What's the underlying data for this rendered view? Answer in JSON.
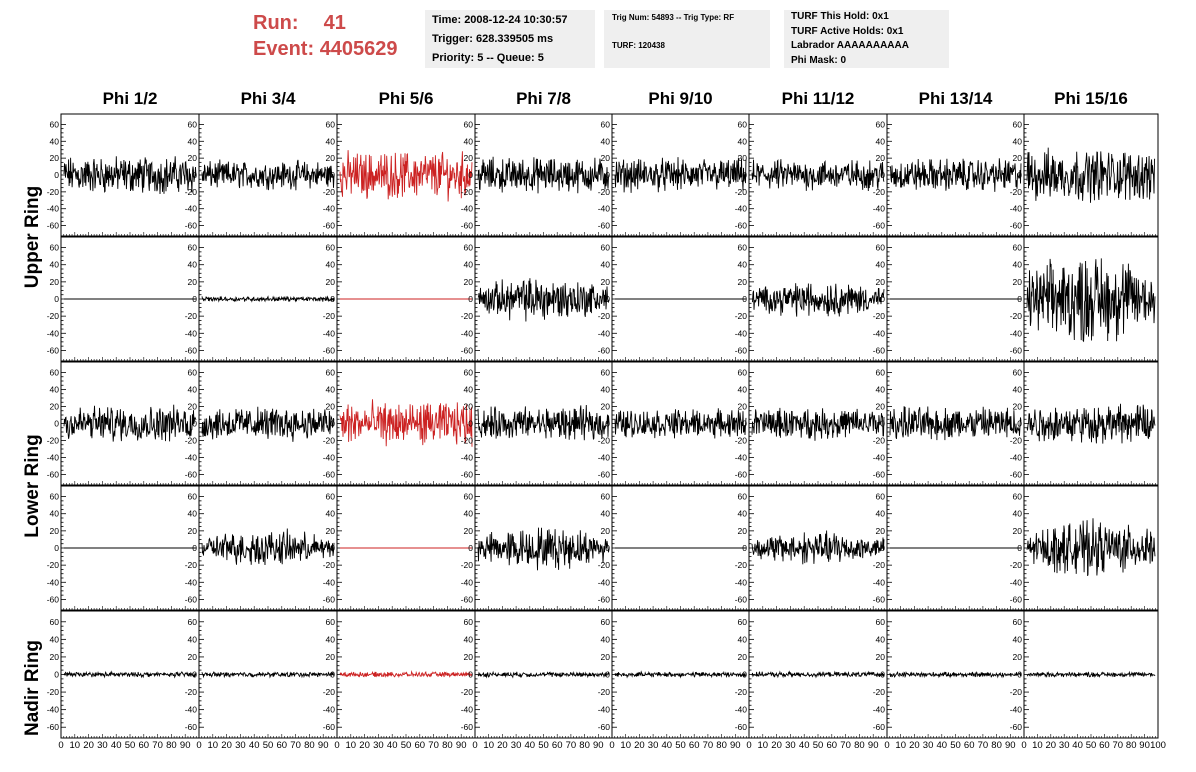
{
  "header": {
    "run_label": "Run:",
    "run_value": "41",
    "event_label": "Event:",
    "event_value": "4405629",
    "accent_color": "#cd4a4a"
  },
  "time_box": {
    "time": "Time: 2008-12-24 10:30:57",
    "trigger": "Trigger: 628.339505 ms",
    "priority": "Priority: 5 -- Queue: 5"
  },
  "trig_box": {
    "trig_line": "Trig Num: 54893 -- Trig Type: RF",
    "turf_line": "TURF: 120438"
  },
  "turf_box": {
    "this_hold": "TURF This Hold: 0x1",
    "active_holds": "TURF Active Holds: 0x1",
    "labrador": "Labrador AAAAAAAAAA",
    "phi_mask": "Phi Mask: 0"
  },
  "phi_labels": [
    "Phi 1/2",
    "Phi 3/4",
    "Phi 5/6",
    "Phi 7/8",
    "Phi 9/10",
    "Phi 11/12",
    "Phi 13/14",
    "Phi 15/16"
  ],
  "ring_labels": [
    "Upper Ring",
    "Lower Ring",
    "Nadir Ring"
  ],
  "chart_data": {
    "type": "line",
    "xlim": [
      0,
      100
    ],
    "ylim": [
      -70,
      70
    ],
    "ytick_labels": [
      "60",
      "40",
      "20",
      "0",
      "-20",
      "-40",
      "-60"
    ],
    "xtick_labels": [
      "0",
      "10",
      "20",
      "30",
      "40",
      "50",
      "60",
      "70",
      "80",
      "90",
      "100"
    ],
    "highlight_color": "#cc2222",
    "trace_color": "#000000",
    "highlight_column": 2,
    "rows": [
      {
        "ring": "Upper Ring",
        "amplitudes": [
          16,
          12,
          20,
          15,
          14,
          13,
          14,
          22
        ]
      },
      {
        "ring": "Upper Ring",
        "amplitudes": [
          0,
          2,
          0,
          15,
          0,
          12,
          0,
          30
        ]
      },
      {
        "ring": "Lower Ring",
        "amplitudes": [
          15,
          14,
          18,
          14,
          12,
          13,
          14,
          16
        ]
      },
      {
        "ring": "Lower Ring",
        "amplitudes": [
          0,
          12,
          0,
          14,
          0,
          11,
          0,
          18
        ]
      },
      {
        "ring": "Nadir Ring",
        "amplitudes": [
          2,
          2,
          2,
          2,
          2,
          2,
          2,
          2
        ]
      }
    ]
  }
}
